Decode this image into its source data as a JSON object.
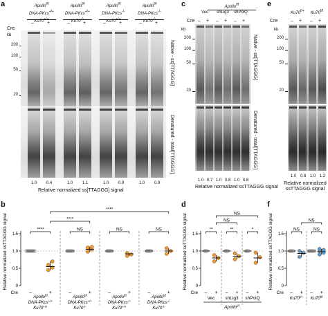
{
  "panels": {
    "a": {
      "letter": "a",
      "groups": [
        {
          "l1": "Apollo",
          "l1s": "f/f",
          "l2": "DNA-PKcs",
          "l2s": "+/+",
          "l3": "Ku70",
          "l3s": "+/+"
        },
        {
          "l1": "Apollo",
          "l1s": "f/f",
          "l2": "DNA-PKcs",
          "l2s": "+/+",
          "l3": "Ku70",
          "l3s": "-/-"
        },
        {
          "l1": "Apollo",
          "l1s": "f/f",
          "l2": "DNA-PKcs",
          "l2s": "-/-",
          "l3": "Ku70",
          "l3s": "+/+"
        },
        {
          "l1": "Apollo",
          "l1s": "f/f",
          "l2": "DNA-PKcs",
          "l2s": "-/-",
          "l3": "Ku70",
          "l3s": "-/-"
        }
      ],
      "cre": "Cre",
      "minus": "–",
      "plus": "+",
      "kb": "kb",
      "ticks": [
        "200",
        "100",
        "50",
        "20"
      ],
      "native_label": "Native - ss[TTAGGG]",
      "denatured_label": "Denatured - total[TTAGGG]",
      "values": [
        "1.0",
        "0.4",
        "1.0",
        "1.1",
        "1.0",
        "0.9",
        "1.0",
        "0.9"
      ],
      "caption": "Relative normalized ss[TTAGGG] signal"
    },
    "c": {
      "letter": "c",
      "header": "Apollo",
      "header_s": "f/f",
      "groups": [
        "Vec",
        "shLig3",
        "shPolQ"
      ],
      "cre": "Cre",
      "kb": "kb",
      "ticks": [
        "200",
        "100",
        "50",
        "20"
      ],
      "native_label": "Native - ss[TTAGGG]",
      "denatured_label": "Denatured - total[TTAGGG]",
      "values": [
        "1.0",
        "0.7",
        "1.0",
        "0.8",
        "1.0",
        "0.8"
      ],
      "caption": "Relative normalized ssTTAGGG signal"
    },
    "e": {
      "letter": "e",
      "groups": [
        {
          "l": "Ku70",
          "s": "f/+"
        },
        {
          "l": "Ku70",
          "s": "f/f"
        }
      ],
      "cre": "Cre",
      "kb": "kb",
      "ticks": [
        "200",
        "100",
        "50",
        "20"
      ],
      "values": [
        "1.0",
        "0.8",
        "1.0",
        "1.2"
      ],
      "caption": "Relative normalized ssTTAGGG signal"
    },
    "b": {
      "letter": "b",
      "ylabel": "Relative normalized ssTTAGGG signal",
      "yticks": [
        "1.5",
        "1.0",
        "0.5",
        "0"
      ],
      "sig": [
        "****",
        "****",
        "****",
        "NS",
        "NS",
        "NS"
      ],
      "cre": "Cre",
      "groups": [
        {
          "l1": "Apollo",
          "l1s": "f/f",
          "l2": "DNA-PKcs",
          "l2s": "+/+",
          "l3": "Ku70",
          "l3s": "+/+"
        },
        {
          "l1": "Apollo",
          "l1s": "f/f",
          "l2": "DNA-PKcs",
          "l2s": "+/+",
          "l3": "Ku70",
          "l3s": "-/-"
        },
        {
          "l1": "Apollo",
          "l1s": "f/f",
          "l2": "DNA-PKcs",
          "l2s": "-/-",
          "l3": "Ku70",
          "l3s": "+/+"
        },
        {
          "l1": "Apollo",
          "l1s": "f/f",
          "l2": "DNA-PKcs",
          "l2s": "-/-",
          "l3": "Ku70",
          "l3s": "-/-"
        }
      ]
    },
    "d": {
      "letter": "d",
      "ylabel": "Relative normalized ssTTAGGG signal",
      "yticks": [
        "1.5",
        "1.0",
        "0.5",
        "0"
      ],
      "sig": [
        "**",
        "**",
        "*",
        "NS",
        "NS"
      ],
      "groups": [
        "Vec",
        "shLig3",
        "shPolQ"
      ],
      "footer": "Apollo",
      "footer_s": "f/f",
      "cre": "Cre"
    },
    "f": {
      "letter": "f",
      "ylabel": "Relative normalized ssTTAGGG signal",
      "yticks": [
        "1.5",
        "1.0",
        "0.5",
        "0"
      ],
      "sig": [
        "NS",
        "NS",
        "NS"
      ],
      "groups": [
        {
          "l": "Ku70",
          "s": "f/+"
        },
        {
          "l": "Ku70",
          "s": "f/f"
        }
      ],
      "cre": "Cre"
    }
  },
  "chart_data": [
    {
      "type": "scatter",
      "title": "",
      "ylabel": "Relative normalized ssTTAGGG signal",
      "ylim": [
        0,
        1.5
      ],
      "categories": [
        "Apollo f/f DNA-PKcs +/+ Ku70 +/+ −",
        "Apollo f/f DNA-PKcs +/+ Ku70 +/+ +",
        "Apollo f/f Ku70 −/− −",
        "Apollo f/f Ku70 −/− +",
        "Apollo f/f DNA-PKcs −/− −",
        "Apollo f/f DNA-PKcs −/− +",
        "Apollo f/f DNA-PKcs −/− Ku70 −/− −",
        "Apollo f/f DNA-PKcs −/− Ku70 −/− +"
      ],
      "means": [
        1.0,
        0.55,
        1.0,
        1.05,
        1.0,
        0.92,
        1.0,
        1.0
      ],
      "points": [
        [
          1,
          1,
          1,
          1,
          1,
          1,
          1,
          1
        ],
        [
          0.45,
          0.52,
          0.6,
          0.7
        ],
        [
          1,
          1,
          1,
          1,
          1,
          1
        ],
        [
          0.98,
          1.05,
          1.1,
          1.12
        ],
        [
          1,
          1,
          1,
          1,
          1
        ],
        [
          0.86,
          0.9,
          0.94
        ],
        [
          1,
          1,
          1,
          1,
          1
        ],
        [
          0.92,
          1.0,
          1.08
        ]
      ]
    },
    {
      "type": "scatter",
      "ylabel": "Relative normalized ssTTAGGG signal",
      "ylim": [
        0,
        1.5
      ],
      "categories": [
        "Vec −",
        "Vec +",
        "shLig3 −",
        "shLig3 +",
        "shPolQ −",
        "shPolQ +"
      ],
      "means": [
        1.0,
        0.8,
        1.0,
        0.85,
        1.0,
        0.8
      ],
      "points": [
        [
          1,
          1,
          1
        ],
        [
          0.7,
          0.8,
          0.88
        ],
        [
          1,
          1,
          1
        ],
        [
          0.76,
          0.85,
          0.93
        ],
        [
          1,
          1,
          1
        ],
        [
          0.66,
          0.82,
          0.95
        ]
      ]
    },
    {
      "type": "scatter",
      "ylabel": "Relative normalized ssTTAGGG signal",
      "ylim": [
        0,
        1.5
      ],
      "categories": [
        "Ku70 f/+ −",
        "Ku70 f/+ +",
        "Ku70 f/f −",
        "Ku70 f/f +"
      ],
      "means": [
        1.0,
        0.93,
        1.0,
        0.98
      ],
      "points": [
        [
          1,
          1,
          1,
          1
        ],
        [
          0.83,
          0.95,
          1.0
        ],
        [
          1,
          1,
          1,
          1,
          1,
          1
        ],
        [
          0.9,
          0.95,
          1.0,
          1.03,
          1.06
        ]
      ]
    }
  ],
  "colors": {
    "control": "#cccccc",
    "apollo": "#e69a3c",
    "ku70": "#5b9bd5",
    "ink": "#111111"
  }
}
